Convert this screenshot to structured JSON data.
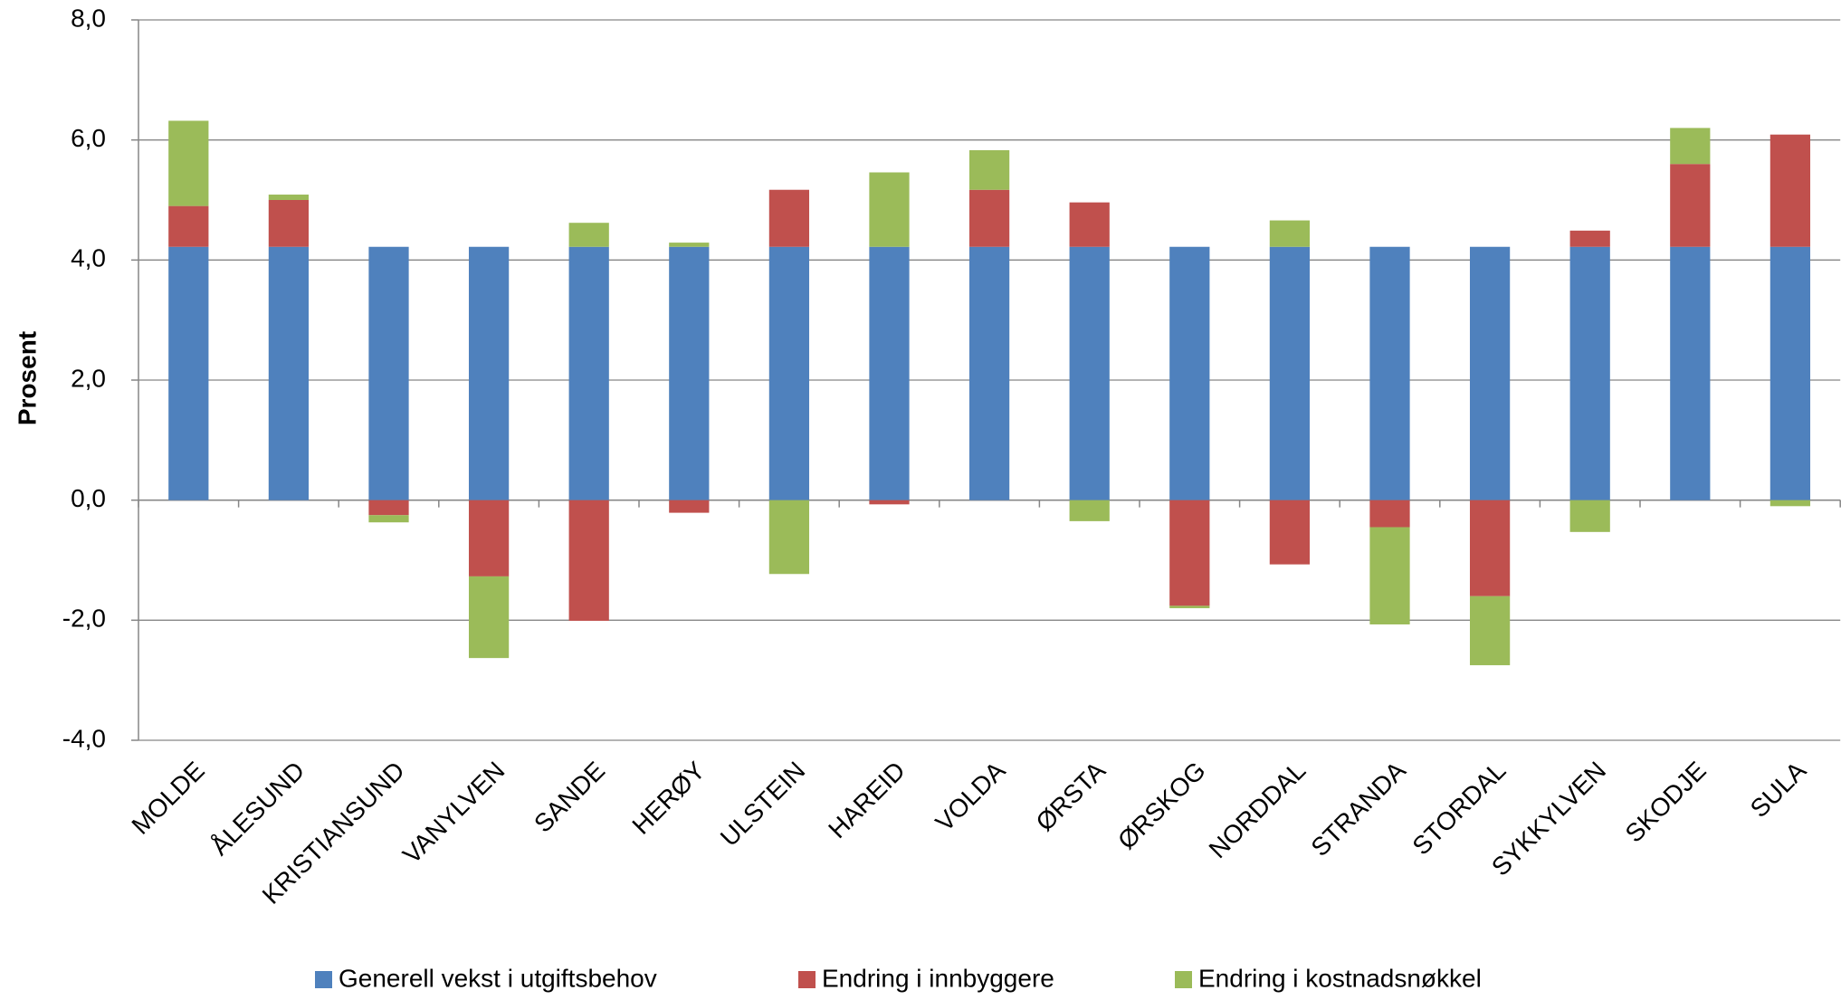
{
  "chart_data": {
    "type": "stacked_bar",
    "y_label": "Prosent",
    "categories": [
      "MOLDE",
      "ÅLESUND",
      "KRISTIANSUND",
      "VANYLVEN",
      "SANDE",
      "HERØY",
      "ULSTEIN",
      "HAREID",
      "VOLDA",
      "ØRSTA",
      "ØRSKOG",
      "NORDDAL",
      "STRANDA",
      "STORDAL",
      "SYKKYLVEN",
      "SKODJE",
      "SULA"
    ],
    "series": [
      {
        "name": "Generell vekst i utgiftsbehov",
        "color": "#4f81bd",
        "values": [
          4.22,
          4.22,
          4.22,
          4.22,
          4.22,
          4.22,
          4.22,
          4.22,
          4.22,
          4.22,
          4.22,
          4.22,
          4.22,
          4.22,
          4.22,
          4.22,
          4.22
        ]
      },
      {
        "name": "Endring i innbyggere",
        "color": "#c0504d",
        "values": [
          0.68,
          0.78,
          -0.25,
          -1.27,
          -2.01,
          -0.21,
          0.95,
          -0.07,
          0.95,
          0.74,
          -1.76,
          -1.07,
          -0.45,
          -1.6,
          0.27,
          1.38,
          1.87
        ]
      },
      {
        "name": "Endring i kostnadsnøkkel",
        "color": "#9bbb59",
        "values": [
          1.42,
          0.09,
          -0.12,
          -1.36,
          0.4,
          0.07,
          -1.23,
          1.24,
          0.66,
          -0.35,
          -0.04,
          0.44,
          -1.62,
          -1.15,
          -0.53,
          0.6,
          -0.1
        ]
      }
    ],
    "ylim": [
      -4,
      8
    ],
    "yticks": [
      {
        "value": -4,
        "label": "-4,0"
      },
      {
        "value": -2,
        "label": "-2,0"
      },
      {
        "value": 0,
        "label": "0,0"
      },
      {
        "value": 2,
        "label": "2,0"
      },
      {
        "value": 4,
        "label": "4,0"
      },
      {
        "value": 6,
        "label": "6,0"
      },
      {
        "value": 8,
        "label": "8,0"
      }
    ],
    "grid": true,
    "legend": "bottom"
  }
}
